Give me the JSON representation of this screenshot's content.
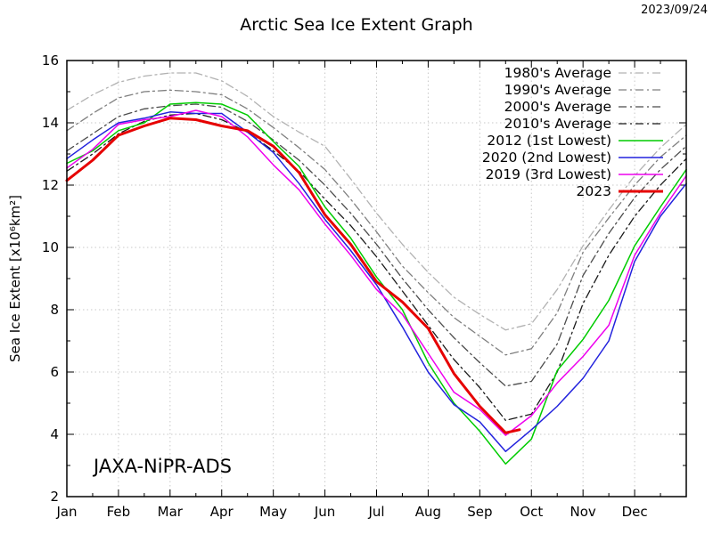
{
  "window": {
    "date_label": "2023/09/24"
  },
  "chart_data": {
    "type": "line",
    "title": "Arctic Sea Ice Extent Graph",
    "ylabel": "Sea Ice Extent [x10⁶km²]",
    "xlabel": "",
    "watermark": "JAXA-NiPR-ADS",
    "x_tick_labels": [
      "Jan",
      "Feb",
      "Mar",
      "Apr",
      "May",
      "Jun",
      "Jul",
      "Aug",
      "Sep",
      "Oct",
      "Nov",
      "Dec"
    ],
    "y_ticks": [
      2,
      4,
      6,
      8,
      10,
      12,
      14,
      16
    ],
    "ylim": [
      2,
      16
    ],
    "xlim_months": [
      0,
      12
    ],
    "grid": "dotted",
    "legend_position": "top-right",
    "x_semimonthly": [
      0,
      0.5,
      1,
      1.5,
      2,
      2.5,
      3,
      3.5,
      4,
      4.5,
      5,
      5.5,
      6,
      6.5,
      7,
      7.5,
      8,
      8.5,
      9,
      9.5,
      10,
      10.5,
      11,
      11.5,
      12
    ],
    "series": [
      {
        "name": "1980's Average",
        "color": "#b2b2b2",
        "style": "dashdot",
        "width": 1.3,
        "values": [
          14.4,
          14.9,
          15.3,
          15.5,
          15.6,
          15.6,
          15.35,
          14.85,
          14.2,
          13.7,
          13.25,
          12.2,
          11.1,
          10.1,
          9.2,
          8.4,
          7.85,
          7.35,
          7.55,
          8.65,
          10.05,
          11.2,
          12.3,
          13.2,
          13.95
        ]
      },
      {
        "name": "1990's Average",
        "color": "#7f7f7f",
        "style": "dashdot",
        "width": 1.3,
        "values": [
          13.75,
          14.3,
          14.8,
          15.0,
          15.05,
          15.0,
          14.9,
          14.45,
          13.85,
          13.2,
          12.5,
          11.55,
          10.5,
          9.4,
          8.55,
          7.75,
          7.15,
          6.55,
          6.75,
          7.9,
          9.85,
          10.95,
          12.0,
          12.9,
          13.6
        ]
      },
      {
        "name": "2000's Average",
        "color": "#4c4c4c",
        "style": "dashdot",
        "width": 1.3,
        "values": [
          13.1,
          13.65,
          14.2,
          14.45,
          14.55,
          14.6,
          14.5,
          14.05,
          13.45,
          12.8,
          12.0,
          11.1,
          10.1,
          9.0,
          8.0,
          7.1,
          6.3,
          5.55,
          5.7,
          6.9,
          9.1,
          10.45,
          11.6,
          12.5,
          13.25
        ]
      },
      {
        "name": "2010's Average",
        "color": "#1a1a1a",
        "style": "dashdot",
        "width": 1.3,
        "values": [
          12.45,
          13.0,
          13.65,
          14.05,
          14.25,
          14.3,
          14.1,
          13.7,
          13.1,
          12.45,
          11.55,
          10.7,
          9.7,
          8.6,
          7.5,
          6.4,
          5.5,
          4.45,
          4.65,
          6.0,
          8.2,
          9.75,
          11.0,
          12.0,
          12.85
        ]
      },
      {
        "name": "2012 (1st Lowest)",
        "color": "#00cc00",
        "style": "solid",
        "width": 1.5,
        "values": [
          12.7,
          13.1,
          13.75,
          14.0,
          14.6,
          14.65,
          14.6,
          14.25,
          13.4,
          12.6,
          11.3,
          10.3,
          9.05,
          8.0,
          6.3,
          5.0,
          4.1,
          3.05,
          3.85,
          6.05,
          7.05,
          8.3,
          10.05,
          11.3,
          12.5
        ]
      },
      {
        "name": "2020 (2nd Lowest)",
        "color": "#2222dd",
        "style": "solid",
        "width": 1.5,
        "values": [
          12.85,
          13.45,
          14.0,
          14.15,
          14.35,
          14.3,
          14.3,
          13.7,
          13.05,
          12.05,
          10.9,
          9.9,
          8.8,
          7.45,
          6.0,
          4.95,
          4.4,
          3.45,
          4.15,
          4.9,
          5.8,
          7.0,
          9.55,
          11.0,
          12.05
        ]
      },
      {
        "name": "2019 (3rd Lowest)",
        "color": "#ee00ee",
        "style": "solid",
        "width": 1.5,
        "values": [
          12.55,
          13.15,
          13.95,
          14.1,
          14.2,
          14.4,
          14.2,
          13.55,
          12.65,
          11.85,
          10.75,
          9.75,
          8.65,
          7.85,
          6.6,
          5.35,
          4.8,
          3.97,
          4.6,
          5.65,
          6.5,
          7.5,
          9.75,
          11.1,
          12.3
        ]
      },
      {
        "name": "2023",
        "color": "#e60000",
        "style": "solid",
        "width": 3,
        "x": [
          0,
          0.5,
          1,
          1.5,
          2,
          2.5,
          3,
          3.5,
          4,
          4.5,
          5,
          5.5,
          6,
          6.5,
          7,
          7.5,
          8,
          8.5,
          8.77
        ],
        "values": [
          12.15,
          12.8,
          13.6,
          13.9,
          14.15,
          14.1,
          13.9,
          13.75,
          13.25,
          12.4,
          11.05,
          10.1,
          8.9,
          8.25,
          7.4,
          5.95,
          4.9,
          4.05,
          4.15
        ]
      }
    ]
  }
}
